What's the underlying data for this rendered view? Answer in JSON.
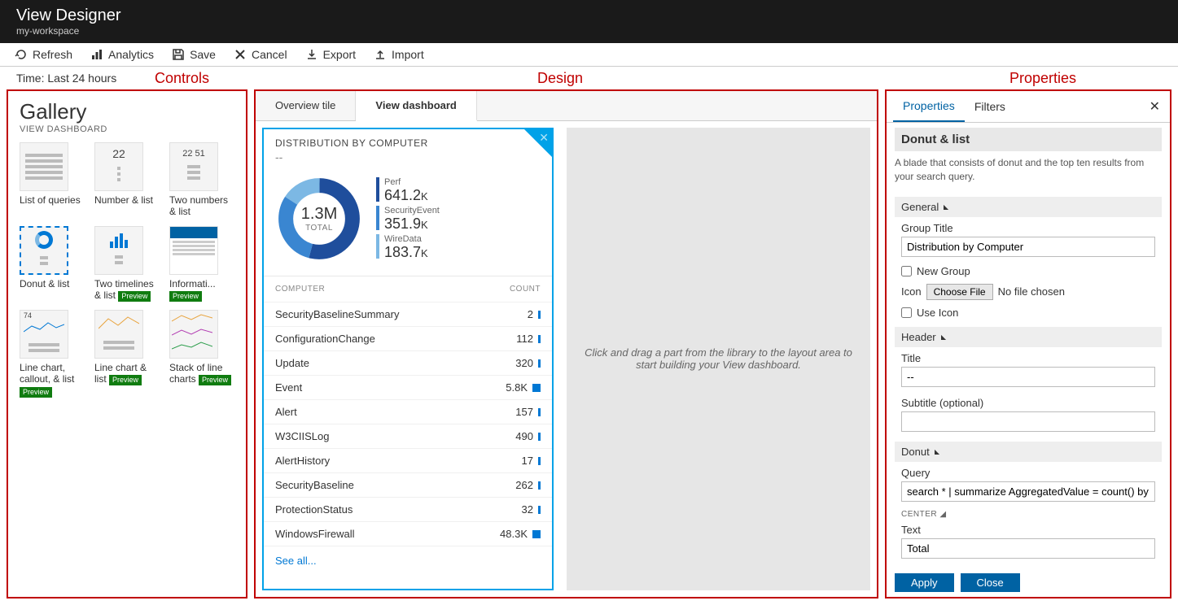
{
  "header": {
    "title": "View Designer",
    "subtitle": "my-workspace"
  },
  "toolbar": {
    "refresh": "Refresh",
    "analytics": "Analytics",
    "save": "Save",
    "cancel": "Cancel",
    "export": "Export",
    "import": "Import"
  },
  "time_label": "Time: Last 24 hours",
  "annotations": {
    "controls": "Controls",
    "design": "Design",
    "properties": "Properties"
  },
  "gallery": {
    "title": "Gallery",
    "subtitle": "VIEW DASHBOARD",
    "items": [
      {
        "label": "List of queries",
        "preview": false,
        "selected": false,
        "thumb": "lines"
      },
      {
        "label": "Number & list",
        "preview": false,
        "selected": false,
        "thumb": "num1",
        "num": "22"
      },
      {
        "label": "Two numbers & list",
        "preview": false,
        "selected": false,
        "thumb": "num2",
        "num": "22  51"
      },
      {
        "label": "Donut & list",
        "preview": false,
        "selected": true,
        "thumb": "donut"
      },
      {
        "label": "Two timelines & list",
        "preview": true,
        "selected": false,
        "thumb": "bars"
      },
      {
        "label": "Informati...",
        "preview": true,
        "selected": false,
        "thumb": "info"
      },
      {
        "label": "Line chart, callout, & list",
        "preview": true,
        "selected": false,
        "thumb": "line1"
      },
      {
        "label": "Line chart & list",
        "preview": true,
        "selected": false,
        "thumb": "line2"
      },
      {
        "label": "Stack of line charts",
        "preview": true,
        "selected": false,
        "thumb": "line3"
      }
    ]
  },
  "design": {
    "tabs": {
      "overview": "Overview tile",
      "view": "View dashboard",
      "active": "view"
    },
    "card": {
      "title": "DISTRIBUTION BY COMPUTER",
      "subtitle": "--",
      "donut": {
        "center_value": "1.3M",
        "center_label": "TOTAL",
        "segments": [
          {
            "label": "Perf",
            "value": "641.2",
            "unit": "K",
            "color": "#1f4e9c",
            "pct": 54
          },
          {
            "label": "SecurityEvent",
            "value": "351.9",
            "unit": "K",
            "color": "#3a86d1",
            "pct": 30
          },
          {
            "label": "WireData",
            "value": "183.7",
            "unit": "K",
            "color": "#7cb8e4",
            "pct": 16
          }
        ]
      },
      "table": {
        "col_computer": "COMPUTER",
        "col_count": "COUNT",
        "rows": [
          {
            "name": "SecurityBaselineSummary",
            "count": "2"
          },
          {
            "name": "ConfigurationChange",
            "count": "112"
          },
          {
            "name": "Update",
            "count": "320"
          },
          {
            "name": "Event",
            "count": "5.8K"
          },
          {
            "name": "Alert",
            "count": "157"
          },
          {
            "name": "W3CIISLog",
            "count": "490"
          },
          {
            "name": "AlertHistory",
            "count": "17"
          },
          {
            "name": "SecurityBaseline",
            "count": "262"
          },
          {
            "name": "ProtectionStatus",
            "count": "32"
          },
          {
            "name": "WindowsFirewall",
            "count": "48.3K"
          }
        ],
        "see_all": "See all..."
      }
    },
    "drop_hint": "Click and drag a part from the library to the layout area to start building your View dashboard."
  },
  "properties": {
    "tabs": {
      "properties": "Properties",
      "filters": "Filters",
      "active": "properties"
    },
    "panel_title": "Donut & list",
    "panel_desc": "A blade that consists of donut and the top ten results from your search query.",
    "sections": {
      "general": {
        "label": "General",
        "group_title_label": "Group Title",
        "group_title_value": "Distribution by Computer",
        "new_group_label": "New Group",
        "new_group_checked": false,
        "icon_label": "Icon",
        "choose_file": "Choose File",
        "no_file": "No file chosen",
        "use_icon_label": "Use Icon",
        "use_icon_checked": false
      },
      "header": {
        "label": "Header",
        "title_label": "Title",
        "title_value": "--",
        "subtitle_label": "Subtitle (optional)",
        "subtitle_value": ""
      },
      "donut": {
        "label": "Donut",
        "query_label": "Query",
        "query_value": "search * | summarize AggregatedValue = count() by T",
        "center_label": "CENTER",
        "text_label": "Text",
        "text_value": "Total"
      }
    },
    "footer": {
      "apply": "Apply",
      "close": "Close"
    }
  },
  "colors": {
    "annotation": "#c00000",
    "accent": "#0078d4",
    "card_border": "#00a2e8",
    "btn": "#0062a3",
    "preview_badge": "#107c10"
  }
}
